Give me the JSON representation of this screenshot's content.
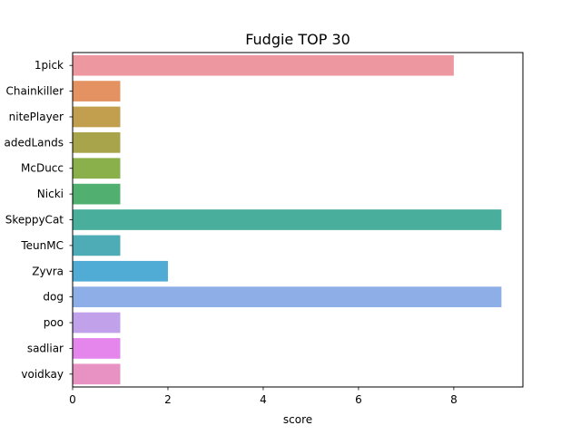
{
  "chart_data": {
    "type": "bar",
    "orientation": "horizontal",
    "title": "Fudgie TOP 30",
    "xlabel": "score",
    "ylabel": "",
    "xlim": [
      0,
      9.45
    ],
    "xticks": [
      0,
      2,
      4,
      6,
      8
    ],
    "xtick_labels": [
      "0",
      "2",
      "4",
      "6",
      "8"
    ],
    "grid": false,
    "categories": [
      "1pick",
      "Chainkiller",
      "InfinitePlayer",
      "FadedLands",
      "McDucc",
      "Nicki",
      "SkeppyCat",
      "TeunMC",
      "Zyvra",
      "dog",
      "poo",
      "sadliar",
      "voidkay"
    ],
    "category_labels_visible": [
      "1pick",
      "Chainkiller",
      "nitePlayer",
      "adedLands",
      "McDucc",
      "Nicki",
      "SkeppyCat",
      "TeunMC",
      "Zyvra",
      "dog",
      "poo",
      "sadliar",
      "voidkay"
    ],
    "values": [
      8,
      1,
      1,
      1,
      1,
      1,
      9,
      1,
      2,
      9,
      1,
      1,
      1
    ],
    "colors": [
      "#ed97a0",
      "#e59262",
      "#c29e4f",
      "#a7a44c",
      "#89b04b",
      "#51b06f",
      "#4aae9c",
      "#4eacb7",
      "#50acd4",
      "#8eaee8",
      "#c1a1ea",
      "#e586ec",
      "#e892c4"
    ]
  }
}
